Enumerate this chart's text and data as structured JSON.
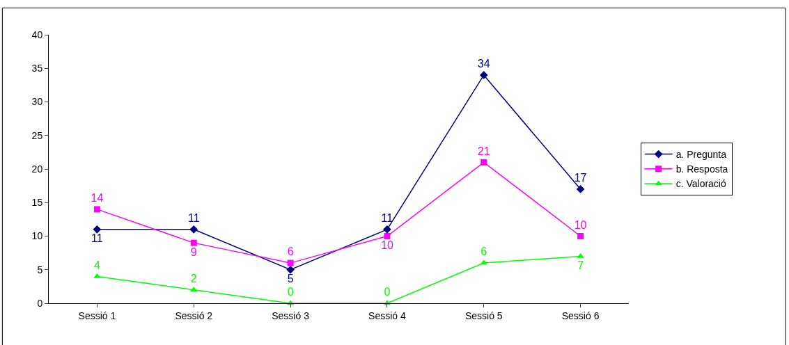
{
  "chart_data": {
    "type": "line",
    "categories": [
      "Sessió 1",
      "Sessió 2",
      "Sessió 3",
      "Sessió 4",
      "Sessió 5",
      "Sessió 6"
    ],
    "series": [
      {
        "name": "a. Pregunta",
        "color": "#000080",
        "marker": "diamond",
        "values": [
          11,
          11,
          5,
          11,
          34,
          17
        ]
      },
      {
        "name": "b. Resposta",
        "color": "#ff00ff",
        "marker": "square",
        "values": [
          14,
          9,
          6,
          10,
          21,
          10
        ]
      },
      {
        "name": "c. Valoració",
        "color": "#00ff00",
        "marker": "triangle",
        "values": [
          4,
          2,
          0,
          0,
          6,
          7
        ]
      }
    ],
    "ylim": [
      0,
      40
    ],
    "yticks": [
      0,
      5,
      10,
      15,
      20,
      25,
      30,
      35,
      40
    ],
    "grid": false,
    "legend": "right",
    "data_labels": true,
    "line_style": "solid"
  }
}
